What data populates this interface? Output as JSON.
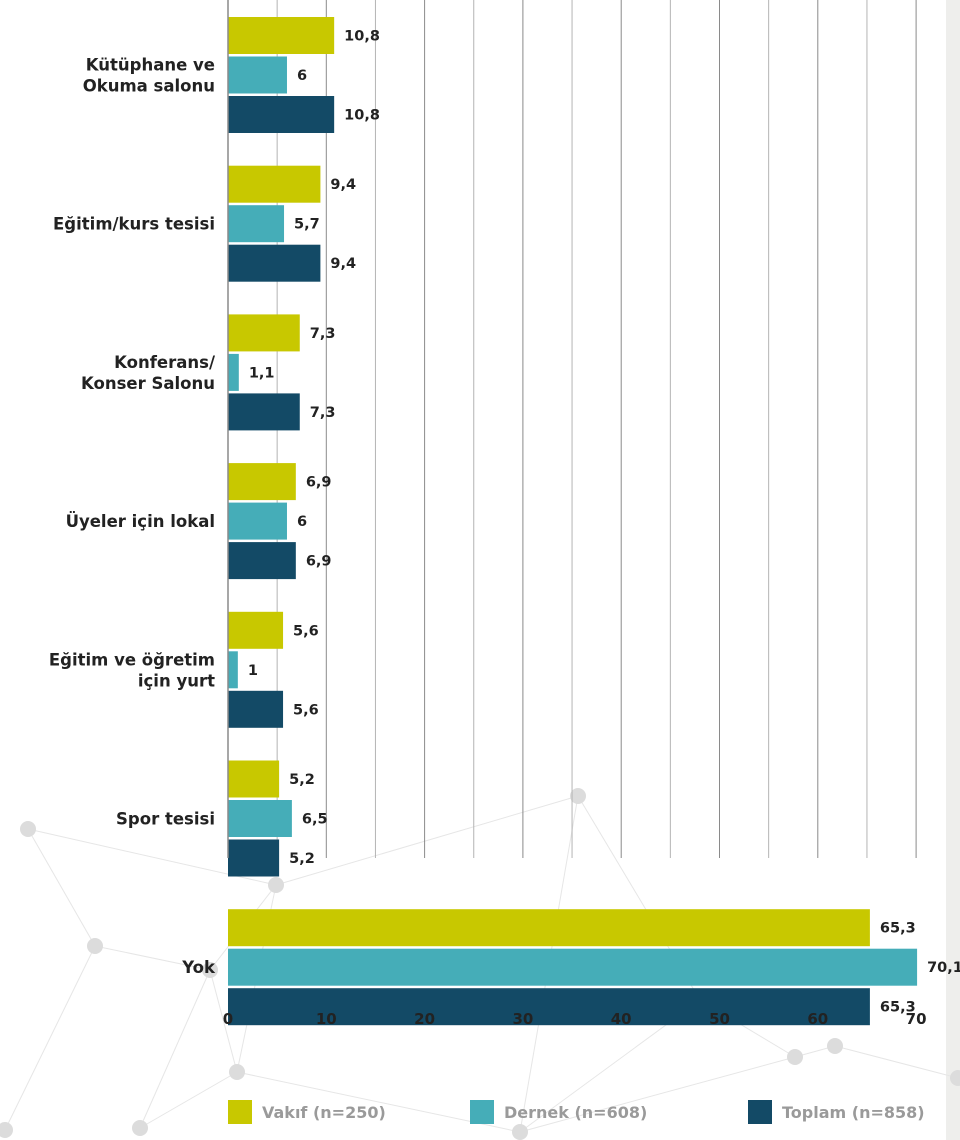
{
  "chart_data": {
    "type": "bar",
    "orientation": "horizontal",
    "categories": [
      "Kütüphane ve\nOkuma salonu",
      "Eğitim/kurs tesisi",
      "Konferans/\nKonser Salonu",
      "Üyeler için lokal",
      "Eğitim ve öğretim\niçin yurt",
      "Spor tesisi",
      "Yok"
    ],
    "series": [
      {
        "name": "Vakıf (n=250)",
        "color": "#c8c800",
        "values": [
          10.8,
          9.4,
          7.3,
          6.9,
          5.6,
          5.2,
          65.3
        ],
        "labels": [
          "10,8",
          "9,4",
          "7,3",
          "6,9",
          "5,6",
          "5,2",
          "65,3"
        ]
      },
      {
        "name": "Dernek (n=608)",
        "color": "#45adb8",
        "values": [
          6,
          5.7,
          1.1,
          6,
          1,
          6.5,
          70.1
        ],
        "labels": [
          "6",
          "5,7",
          "1,1",
          "6",
          "1",
          "6,5",
          "70,1"
        ]
      },
      {
        "name": "Toplam (n=858)",
        "color": "#134a66",
        "values": [
          10.8,
          9.4,
          7.3,
          6.9,
          5.6,
          5.2,
          65.3
        ],
        "labels": [
          "10,8",
          "9,4",
          "7,3",
          "6,9",
          "5,6",
          "5,2",
          "65,3"
        ]
      }
    ],
    "xlim": [
      0,
      70
    ],
    "xticks": [
      0,
      10,
      20,
      30,
      40,
      50,
      60,
      70
    ],
    "grid": true,
    "legend": "bottom",
    "title": "",
    "xlabel": "",
    "ylabel": ""
  }
}
